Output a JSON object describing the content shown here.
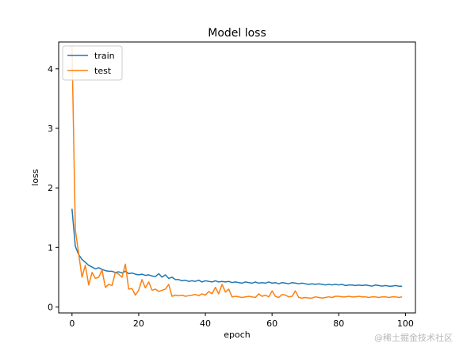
{
  "chart_data": {
    "type": "line",
    "title": "Model loss",
    "xlabel": "epoch",
    "ylabel": "loss",
    "xlim": [
      -4,
      103
    ],
    "ylim": [
      -0.1,
      4.45
    ],
    "x_ticks": [
      0,
      20,
      40,
      60,
      80,
      100
    ],
    "y_ticks": [
      0,
      1,
      2,
      3,
      4
    ],
    "grid": false,
    "legend": {
      "placement": "top-left",
      "entries": [
        "train",
        "test"
      ]
    },
    "x": [
      0,
      1,
      2,
      3,
      4,
      5,
      6,
      7,
      8,
      9,
      10,
      11,
      12,
      13,
      14,
      15,
      16,
      17,
      18,
      19,
      20,
      21,
      22,
      23,
      24,
      25,
      26,
      27,
      28,
      29,
      30,
      31,
      32,
      33,
      34,
      35,
      36,
      37,
      38,
      39,
      40,
      41,
      42,
      43,
      44,
      45,
      46,
      47,
      48,
      49,
      50,
      51,
      52,
      53,
      54,
      55,
      56,
      57,
      58,
      59,
      60,
      61,
      62,
      63,
      64,
      65,
      66,
      67,
      68,
      69,
      70,
      71,
      72,
      73,
      74,
      75,
      76,
      77,
      78,
      79,
      80,
      81,
      82,
      83,
      84,
      85,
      86,
      87,
      88,
      89,
      90,
      91,
      92,
      93,
      94,
      95,
      96,
      97,
      98,
      99
    ],
    "series": [
      {
        "name": "train",
        "color": "#1f77b4",
        "values": [
          1.65,
          1.02,
          0.88,
          0.8,
          0.75,
          0.7,
          0.67,
          0.64,
          0.66,
          0.63,
          0.61,
          0.6,
          0.6,
          0.58,
          0.59,
          0.57,
          0.6,
          0.56,
          0.57,
          0.55,
          0.54,
          0.55,
          0.53,
          0.54,
          0.52,
          0.51,
          0.56,
          0.5,
          0.54,
          0.48,
          0.5,
          0.46,
          0.46,
          0.44,
          0.45,
          0.43,
          0.44,
          0.43,
          0.45,
          0.42,
          0.44,
          0.43,
          0.42,
          0.44,
          0.42,
          0.43,
          0.42,
          0.43,
          0.41,
          0.42,
          0.41,
          0.4,
          0.42,
          0.41,
          0.4,
          0.42,
          0.4,
          0.41,
          0.4,
          0.42,
          0.4,
          0.41,
          0.39,
          0.41,
          0.4,
          0.39,
          0.41,
          0.4,
          0.39,
          0.4,
          0.39,
          0.38,
          0.39,
          0.38,
          0.39,
          0.38,
          0.37,
          0.38,
          0.37,
          0.38,
          0.37,
          0.38,
          0.36,
          0.37,
          0.37,
          0.36,
          0.37,
          0.36,
          0.37,
          0.36,
          0.35,
          0.37,
          0.36,
          0.35,
          0.36,
          0.35,
          0.35,
          0.36,
          0.35,
          0.35
        ]
      },
      {
        "name": "test",
        "color": "#ff7f0e",
        "values": [
          4.38,
          1.3,
          0.9,
          0.5,
          0.7,
          0.37,
          0.58,
          0.48,
          0.5,
          0.62,
          0.33,
          0.38,
          0.36,
          0.58,
          0.55,
          0.5,
          0.72,
          0.3,
          0.31,
          0.2,
          0.28,
          0.46,
          0.32,
          0.42,
          0.28,
          0.3,
          0.26,
          0.28,
          0.3,
          0.38,
          0.18,
          0.2,
          0.19,
          0.2,
          0.18,
          0.19,
          0.2,
          0.21,
          0.19,
          0.22,
          0.2,
          0.26,
          0.22,
          0.33,
          0.22,
          0.38,
          0.25,
          0.3,
          0.17,
          0.18,
          0.17,
          0.16,
          0.17,
          0.18,
          0.17,
          0.16,
          0.22,
          0.18,
          0.2,
          0.17,
          0.27,
          0.18,
          0.16,
          0.21,
          0.2,
          0.17,
          0.18,
          0.27,
          0.16,
          0.15,
          0.16,
          0.15,
          0.15,
          0.17,
          0.16,
          0.15,
          0.16,
          0.17,
          0.16,
          0.18,
          0.18,
          0.17,
          0.17,
          0.18,
          0.17,
          0.17,
          0.18,
          0.17,
          0.17,
          0.16,
          0.17,
          0.17,
          0.16,
          0.17,
          0.17,
          0.16,
          0.17,
          0.17,
          0.16,
          0.17
        ]
      }
    ]
  },
  "watermark": "@稀土掘金技术社区"
}
